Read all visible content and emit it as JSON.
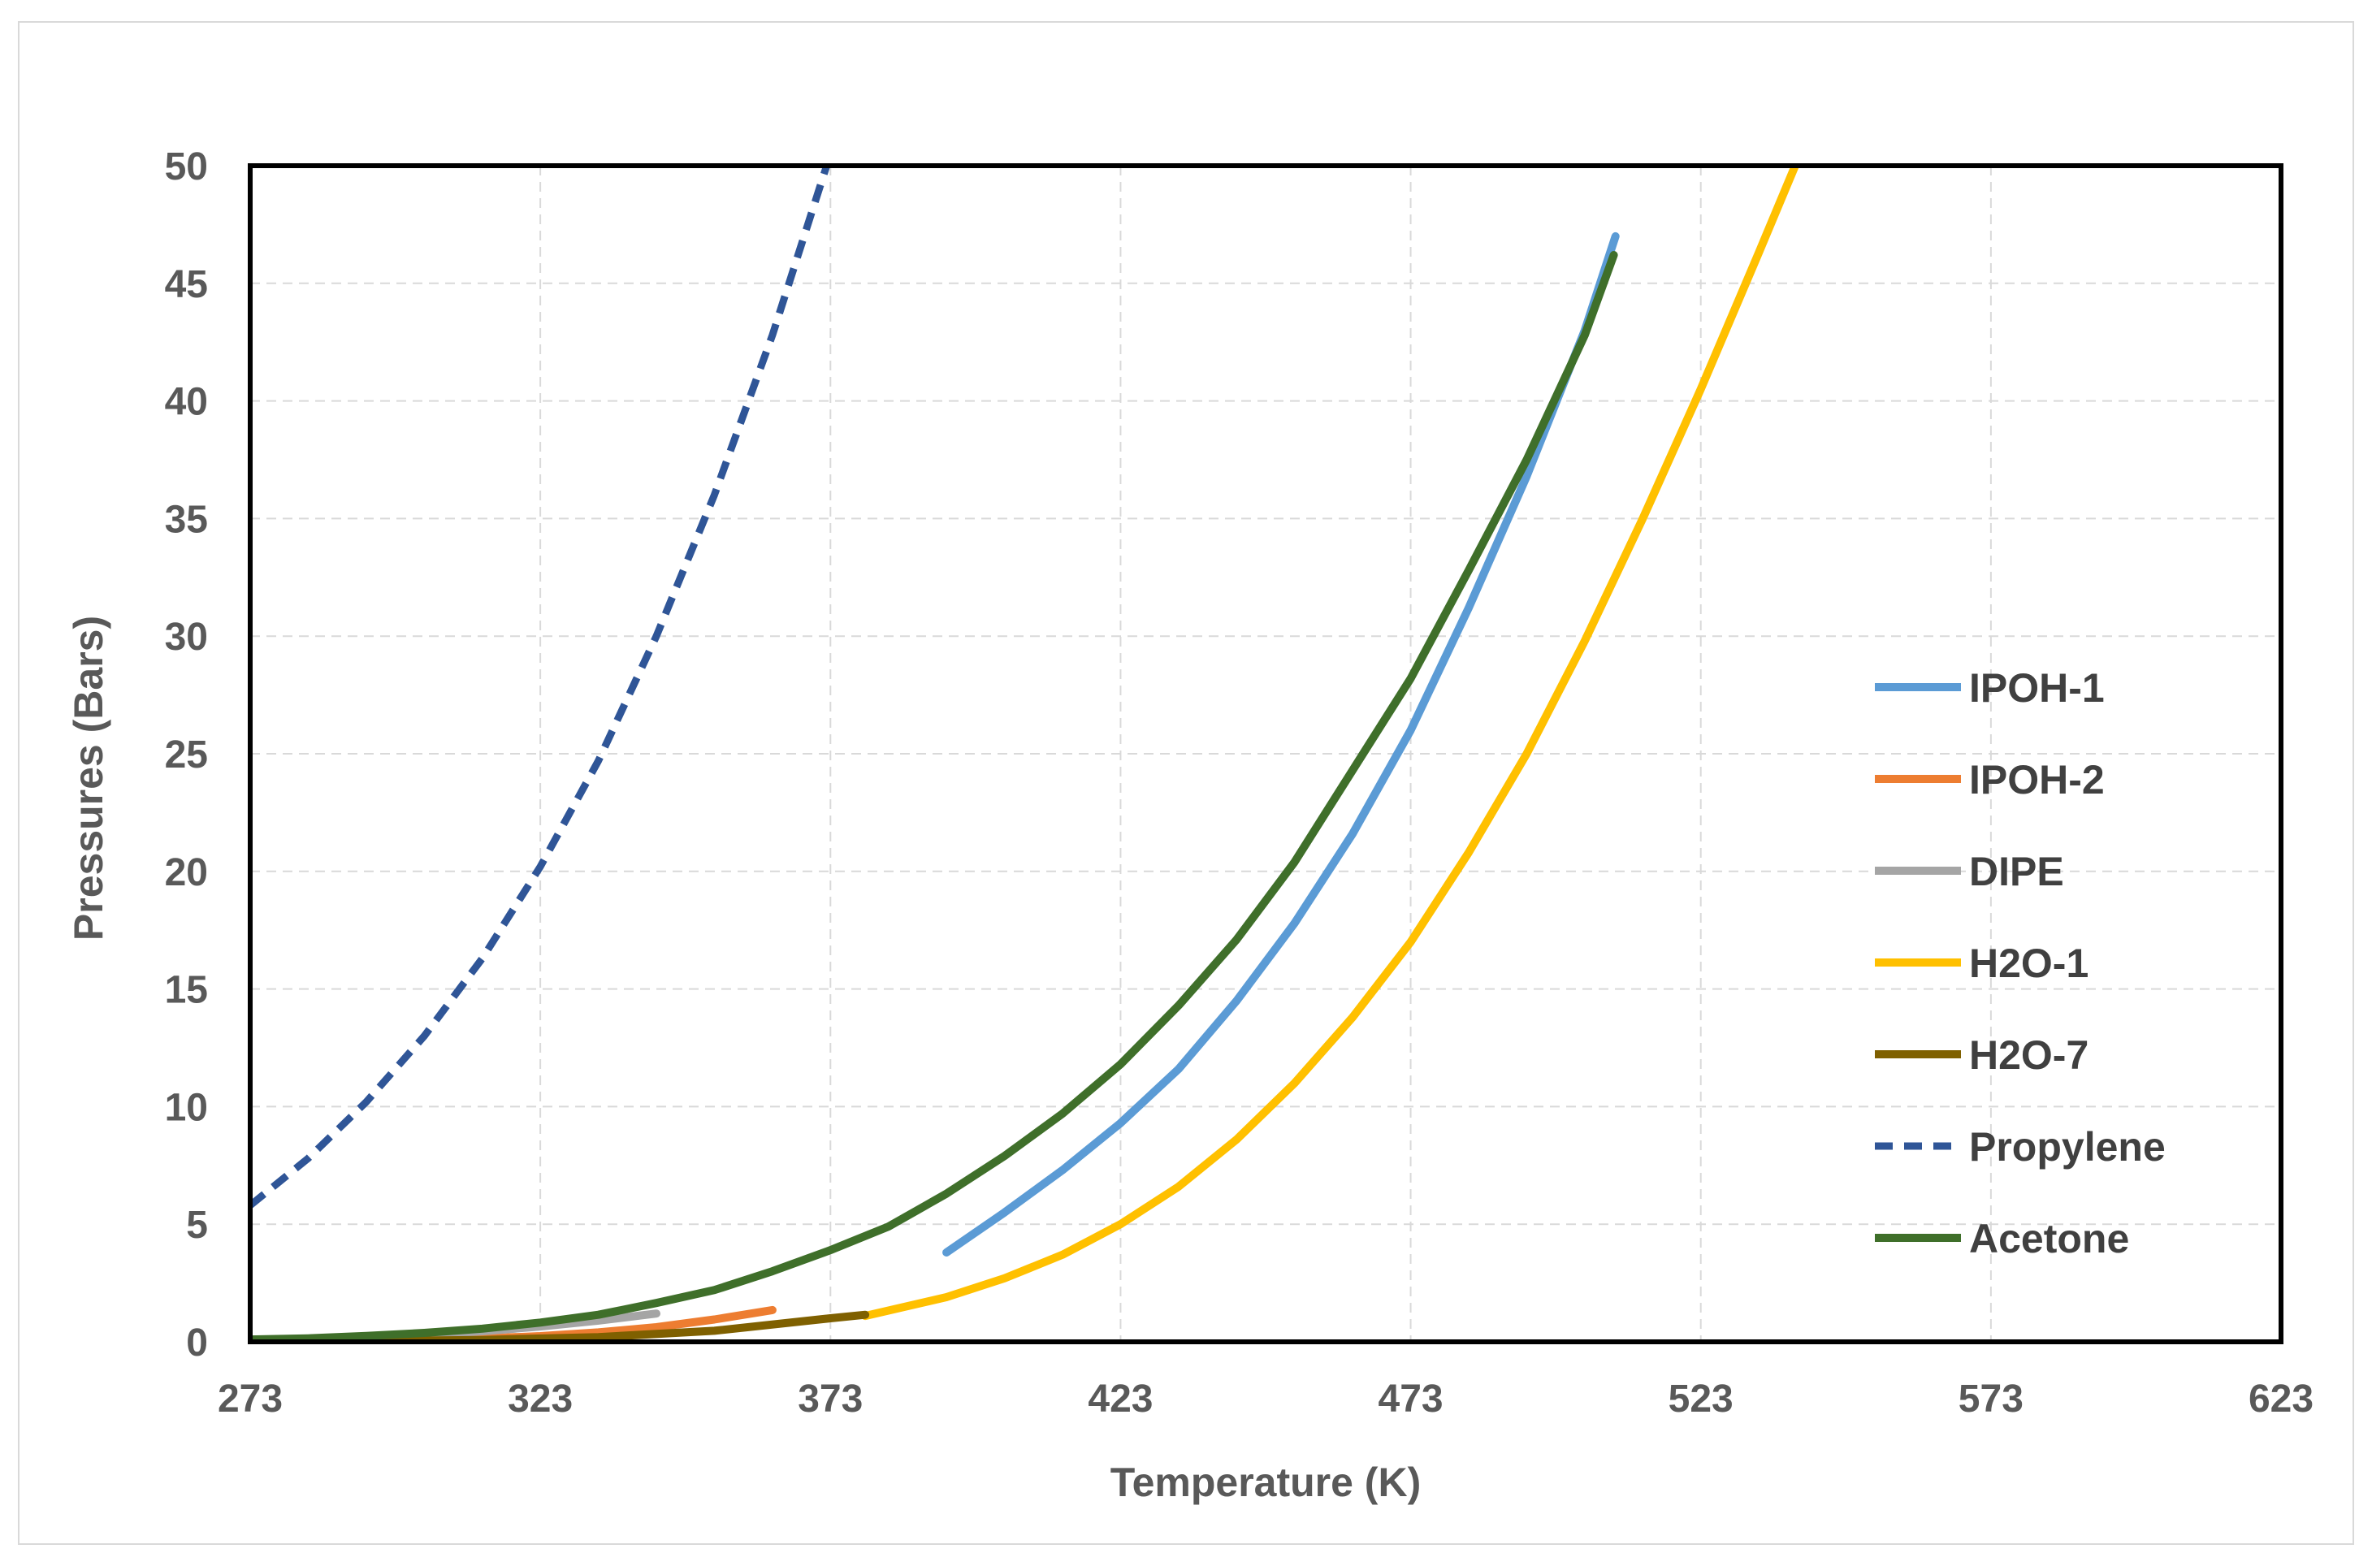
{
  "chart_data": {
    "type": "line",
    "title": "",
    "xlabel": "Temperature (K)",
    "ylabel": "Pressures (Bars)",
    "xlim": [
      273,
      623
    ],
    "ylim": [
      0,
      50
    ],
    "xticks": [
      273,
      323,
      373,
      423,
      473,
      523,
      573,
      623
    ],
    "yticks": [
      0,
      5,
      10,
      15,
      20,
      25,
      30,
      35,
      40,
      45,
      50
    ],
    "grid": true,
    "legend_position": "right",
    "series": [
      {
        "name": "IPOH-1",
        "color": "#5b9bd5",
        "dash": false,
        "x": [
          393,
          403,
          413,
          423,
          433,
          443,
          453,
          463,
          473,
          483,
          493,
          503,
          508.3
        ],
        "y": [
          3.8,
          5.5,
          7.3,
          9.3,
          11.6,
          14.5,
          17.8,
          21.6,
          26.0,
          31.2,
          36.8,
          43.0,
          47.0
        ]
      },
      {
        "name": "IPOH-2",
        "color": "#ed7d31",
        "dash": false,
        "x": [
          273,
          283,
          293,
          303,
          313,
          323,
          333,
          343,
          353,
          363
        ],
        "y": [
          0.01,
          0.02,
          0.04,
          0.08,
          0.14,
          0.24,
          0.4,
          0.62,
          0.95,
          1.35
        ]
      },
      {
        "name": "DIPE",
        "color": "#a5a5a5",
        "dash": false,
        "x": [
          273,
          283,
          293,
          303,
          313,
          323,
          333,
          343
        ],
        "y": [
          0.07,
          0.12,
          0.2,
          0.3,
          0.45,
          0.65,
          0.9,
          1.2
        ]
      },
      {
        "name": "H2O-1",
        "color": "#ffc000",
        "dash": false,
        "x": [
          379,
          393,
          403,
          413,
          423,
          433,
          443,
          453,
          463,
          473,
          483,
          493,
          503,
          513,
          523,
          533,
          543,
          544.5
        ],
        "y": [
          1.1,
          1.9,
          2.7,
          3.7,
          5.0,
          6.6,
          8.6,
          11.0,
          13.8,
          17.0,
          20.8,
          25.0,
          29.8,
          35.0,
          40.5,
          46.3,
          52.2,
          53.0
        ]
      },
      {
        "name": "H2O-7",
        "color": "#7f6000",
        "dash": false,
        "x": [
          273,
          293,
          313,
          333,
          353,
          373,
          379
        ],
        "y": [
          0.01,
          0.03,
          0.08,
          0.2,
          0.47,
          1.0,
          1.15
        ]
      },
      {
        "name": "Propylene",
        "color": "#2f5597",
        "dash": true,
        "x": [
          273,
          283,
          293,
          303,
          313,
          323,
          333,
          343,
          353,
          363,
          373,
          378
        ],
        "y": [
          5.8,
          7.8,
          10.2,
          13.0,
          16.3,
          20.2,
          24.7,
          30.0,
          36.0,
          42.8,
          50.5,
          54.5
        ]
      },
      {
        "name": "Acetone",
        "color": "#3f6f2a",
        "dash": false,
        "x": [
          273,
          283,
          293,
          303,
          313,
          323,
          333,
          343,
          353,
          363,
          373,
          383,
          393,
          403,
          413,
          423,
          433,
          443,
          453,
          463,
          473,
          483,
          493,
          503,
          508
        ],
        "y": [
          0.1,
          0.15,
          0.25,
          0.38,
          0.56,
          0.82,
          1.15,
          1.65,
          2.2,
          3.0,
          3.9,
          4.9,
          6.3,
          7.9,
          9.7,
          11.8,
          14.3,
          17.1,
          20.4,
          24.3,
          28.2,
          32.8,
          37.5,
          42.8,
          46.2
        ]
      }
    ]
  }
}
